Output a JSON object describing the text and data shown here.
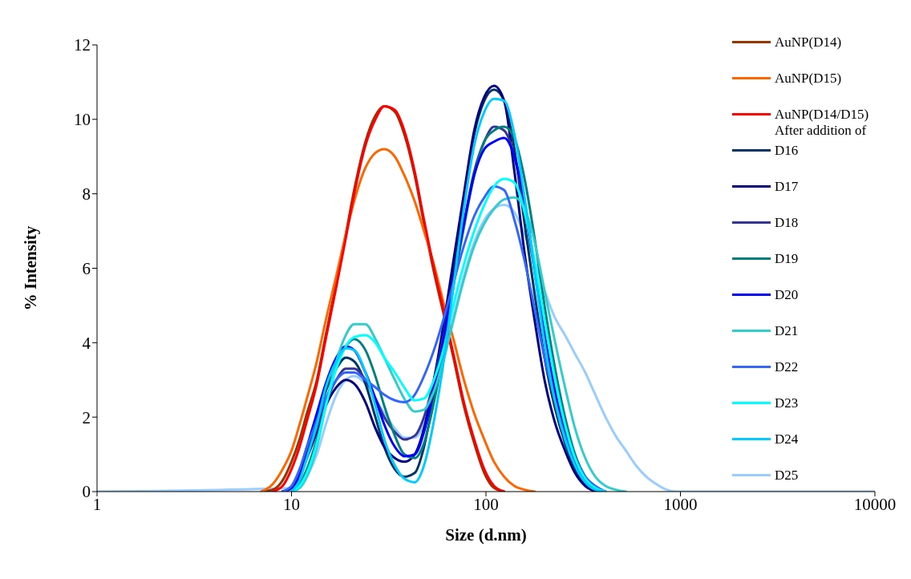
{
  "chart_data": {
    "type": "line",
    "xlabel": "Size (d.nm)",
    "ylabel": "% Intensity",
    "log": "x",
    "grid": false,
    "legend": "top right",
    "marker": "none",
    "line_style": "solid",
    "annotations": [
      "After addition of"
    ],
    "xlim": [
      1,
      10000
    ],
    "xticks": [
      1,
      10,
      100,
      1000,
      10000
    ],
    "ylim": [
      0,
      12
    ],
    "yticks": [
      0,
      2,
      4,
      6,
      8,
      10,
      12
    ],
    "x": [
      1,
      7,
      8,
      9,
      10,
      11,
      12,
      13.5,
      15,
      17,
      19,
      21,
      24,
      27,
      30,
      34,
      38,
      43,
      48,
      54,
      61,
      68,
      77,
      87,
      98,
      110,
      124,
      140,
      158,
      178,
      200,
      225,
      255,
      287,
      324,
      365,
      412,
      464,
      524,
      591,
      667,
      752,
      848,
      956,
      1100,
      10000
    ],
    "series": [
      {
        "name": "AuNP(D14)",
        "color": "#993300",
        "values": [
          null,
          0,
          0.05,
          0.3,
          0.8,
          1.4,
          2.1,
          3.0,
          4.2,
          5.6,
          6.9,
          8.1,
          9.4,
          10.1,
          10.35,
          10.2,
          9.6,
          8.5,
          7.2,
          5.9,
          4.7,
          3.6,
          2.3,
          1.3,
          0.5,
          0.1,
          0,
          null,
          null,
          null,
          null,
          null,
          null,
          null,
          null,
          null,
          null,
          null,
          null,
          null,
          null,
          null,
          null,
          null,
          null,
          null
        ]
      },
      {
        "name": "AuNP(D15)",
        "color": "#ff6600",
        "values": [
          null,
          0,
          0.2,
          0.6,
          1.1,
          1.8,
          2.5,
          3.5,
          4.6,
          5.8,
          6.9,
          7.8,
          8.7,
          9.1,
          9.2,
          9.0,
          8.5,
          7.8,
          7.0,
          6.1,
          5.0,
          4.1,
          3.0,
          2.1,
          1.4,
          0.8,
          0.4,
          0.15,
          0.05,
          0,
          null,
          null,
          null,
          null,
          null,
          null,
          null,
          null,
          null,
          null,
          null,
          null,
          null,
          null,
          null,
          null
        ]
      },
      {
        "name": "AuNP(D14/D15)",
        "color": "#ff0000",
        "values": [
          null,
          null,
          0,
          0.15,
          0.6,
          1.2,
          1.9,
          2.9,
          4.1,
          5.5,
          6.8,
          8.0,
          9.3,
          10.0,
          10.35,
          10.25,
          9.7,
          8.6,
          7.3,
          6.0,
          4.8,
          3.7,
          2.4,
          1.4,
          0.6,
          0.15,
          0,
          null,
          null,
          null,
          null,
          null,
          null,
          null,
          null,
          null,
          null,
          null,
          null,
          null,
          null,
          null,
          null,
          null,
          null,
          null
        ]
      },
      {
        "name": "D16",
        "color": "#003366",
        "values": [
          null,
          null,
          null,
          0,
          0.1,
          0.5,
          1.1,
          1.9,
          2.7,
          3.3,
          3.6,
          3.5,
          2.9,
          2.0,
          1.2,
          0.6,
          0.4,
          0.5,
          1.2,
          2.6,
          4.3,
          6.0,
          7.9,
          9.6,
          10.5,
          10.8,
          10.5,
          9.2,
          7.2,
          5.3,
          3.6,
          2.3,
          1.3,
          0.6,
          0.2,
          0.05,
          0,
          null,
          null,
          null,
          null,
          null,
          null,
          null,
          null,
          null
        ]
      },
      {
        "name": "D17",
        "color": "#000080",
        "values": [
          null,
          null,
          null,
          0,
          0.1,
          0.4,
          0.9,
          1.6,
          2.3,
          2.8,
          3.0,
          2.9,
          2.4,
          1.7,
          1.2,
          0.9,
          0.8,
          1.0,
          1.7,
          3.0,
          4.6,
          6.2,
          8.0,
          9.7,
          10.6,
          10.9,
          10.5,
          8.6,
          6.4,
          4.6,
          3.0,
          1.9,
          1.1,
          0.5,
          0.15,
          0,
          null,
          null,
          null,
          null,
          null,
          null,
          null,
          null,
          null,
          null
        ]
      },
      {
        "name": "D18",
        "color": "#333399",
        "values": [
          null,
          null,
          null,
          0,
          0.1,
          0.5,
          1.0,
          1.7,
          2.4,
          3.0,
          3.3,
          3.3,
          3.0,
          2.5,
          2.0,
          1.6,
          1.4,
          1.5,
          2.0,
          3.0,
          4.3,
          5.7,
          7.2,
          8.6,
          9.4,
          9.8,
          9.7,
          9.0,
          7.6,
          5.9,
          4.2,
          2.8,
          1.6,
          0.8,
          0.3,
          0.1,
          0,
          null,
          null,
          null,
          null,
          null,
          null,
          null,
          null,
          null
        ]
      },
      {
        "name": "D19",
        "color": "#008080",
        "values": [
          null,
          null,
          null,
          null,
          0,
          0.2,
          0.6,
          1.4,
          2.3,
          3.4,
          3.9,
          4.1,
          3.8,
          3.1,
          2.3,
          1.5,
          1.0,
          0.9,
          1.3,
          2.4,
          3.9,
          5.5,
          7.1,
          8.5,
          9.4,
          9.7,
          9.8,
          9.5,
          8.4,
          6.8,
          5.0,
          3.4,
          2.0,
          1.0,
          0.4,
          0.1,
          0,
          null,
          null,
          null,
          null,
          null,
          null,
          null,
          null,
          null
        ]
      },
      {
        "name": "D20",
        "color": "#0000ff",
        "values": [
          null,
          null,
          null,
          0,
          0.1,
          0.5,
          1.2,
          2.1,
          2.9,
          3.6,
          3.9,
          3.8,
          3.2,
          2.5,
          1.8,
          1.2,
          0.95,
          1.0,
          1.6,
          2.8,
          4.2,
          5.7,
          7.2,
          8.5,
          9.2,
          9.4,
          9.5,
          9.0,
          7.8,
          6.0,
          4.2,
          2.7,
          1.5,
          0.7,
          0.25,
          0.05,
          0,
          null,
          null,
          null,
          null,
          null,
          null,
          null,
          null,
          null
        ]
      },
      {
        "name": "D21",
        "color": "#33cccc",
        "values": [
          null,
          null,
          null,
          null,
          0,
          0.1,
          0.4,
          1.2,
          2.3,
          3.5,
          4.2,
          4.5,
          4.5,
          4.1,
          3.6,
          3.0,
          2.5,
          2.15,
          2.2,
          2.7,
          3.6,
          4.6,
          5.7,
          6.6,
          7.2,
          7.6,
          7.85,
          7.9,
          7.6,
          6.7,
          5.4,
          4.1,
          2.8,
          1.7,
          0.9,
          0.4,
          0.15,
          0.05,
          0,
          null,
          null,
          null,
          null,
          null,
          null,
          null
        ]
      },
      {
        "name": "D22",
        "color": "#3366ff",
        "values": [
          null,
          null,
          null,
          0,
          0.15,
          0.6,
          1.2,
          1.9,
          2.5,
          3.0,
          3.2,
          3.2,
          3.0,
          2.8,
          2.6,
          2.45,
          2.4,
          2.6,
          3.1,
          3.8,
          4.7,
          5.6,
          6.6,
          7.4,
          7.9,
          8.2,
          8.1,
          7.3,
          6.2,
          4.9,
          3.6,
          2.5,
          1.5,
          0.9,
          0.4,
          0.15,
          0,
          null,
          null,
          null,
          null,
          null,
          null,
          null,
          null,
          null
        ]
      },
      {
        "name": "D23",
        "color": "#00ffff",
        "values": [
          null,
          null,
          null,
          null,
          0,
          0.15,
          0.5,
          1.3,
          2.3,
          3.3,
          3.9,
          4.15,
          4.2,
          4.0,
          3.6,
          3.2,
          2.8,
          2.45,
          2.5,
          3.0,
          3.9,
          5.0,
          6.1,
          7.0,
          7.7,
          8.2,
          8.4,
          8.3,
          7.5,
          6.2,
          4.6,
          3.1,
          1.8,
          0.9,
          0.35,
          0.1,
          0,
          null,
          null,
          null,
          null,
          null,
          null,
          null,
          null,
          null
        ]
      },
      {
        "name": "D24",
        "color": "#00ccff",
        "values": [
          null,
          null,
          null,
          null,
          0,
          0.3,
          0.9,
          1.8,
          2.8,
          3.5,
          3.85,
          3.8,
          3.2,
          2.3,
          1.4,
          0.7,
          0.35,
          0.25,
          0.7,
          1.9,
          3.6,
          5.5,
          7.6,
          9.3,
          10.2,
          10.55,
          10.5,
          9.6,
          7.9,
          5.9,
          4.0,
          2.5,
          1.4,
          0.7,
          0.25,
          0.05,
          0,
          null,
          null,
          null,
          null,
          null,
          null,
          null,
          null,
          null
        ]
      },
      {
        "name": "D25",
        "color": "#99ccff",
        "values": [
          0,
          null,
          null,
          null,
          null,
          0.1,
          0.4,
          1.0,
          1.8,
          2.6,
          3.0,
          3.1,
          2.9,
          2.5,
          2.1,
          1.7,
          1.45,
          1.45,
          1.8,
          2.6,
          3.6,
          4.7,
          5.8,
          6.7,
          7.3,
          7.6,
          7.7,
          7.5,
          6.9,
          6.2,
          5.4,
          4.7,
          4.2,
          3.7,
          3.2,
          2.6,
          2.0,
          1.5,
          1.1,
          0.7,
          0.4,
          0.2,
          0.05,
          0,
          null,
          0
        ]
      }
    ]
  }
}
